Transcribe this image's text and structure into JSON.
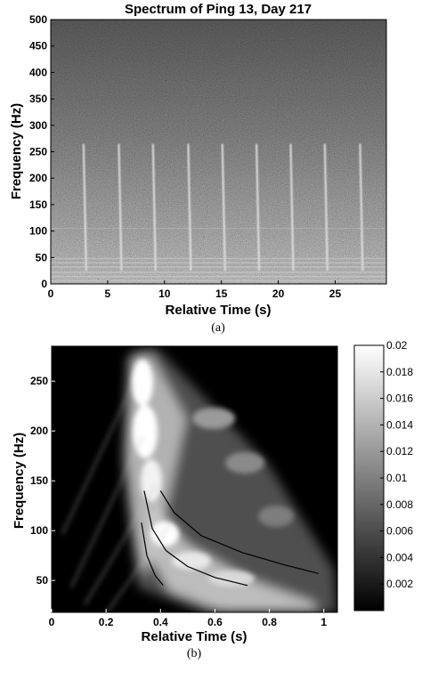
{
  "chart_data": [
    {
      "type": "heatmap",
      "title": "Spectrum of Ping 13, Day 217",
      "xlabel": "Relative Time (s)",
      "ylabel": "Frequency (Hz)",
      "xlim": [
        0,
        29.5
      ],
      "ylim": [
        0,
        500
      ],
      "xticks": [
        0,
        5,
        10,
        15,
        20,
        25
      ],
      "yticks": [
        0,
        50,
        100,
        150,
        200,
        250,
        300,
        350,
        400,
        450,
        500
      ],
      "colormap": "gray",
      "pulse_times": [
        3.0,
        6.1,
        9.1,
        12.2,
        15.2,
        18.2,
        21.2,
        24.2,
        27.3
      ],
      "pulse_freq_range": [
        25,
        265
      ],
      "caption": "(a)"
    },
    {
      "type": "heatmap",
      "xlabel": "Relative Time (s)",
      "ylabel": "Frequency (Hz)",
      "xlim": [
        0,
        1.05
      ],
      "ylim": [
        18,
        285
      ],
      "xticks": [
        0,
        0.2,
        0.4,
        0.6,
        0.8,
        1
      ],
      "xtick_labels": [
        "0",
        "0.2",
        "0.4",
        "0.6",
        "0.8",
        "1"
      ],
      "yticks": [
        50,
        100,
        150,
        200,
        250
      ],
      "colormap": "gray",
      "colorbar": {
        "min": 0,
        "max": 0.02,
        "ticks": [
          0.002,
          0.004,
          0.006,
          0.008,
          0.01,
          0.012,
          0.014,
          0.016,
          0.018,
          0.02
        ],
        "tick_labels": [
          "0.002",
          "0.004",
          "0.006",
          "0.008",
          "0.01",
          "0.012",
          "0.014",
          "0.016",
          "0.018",
          "0.02"
        ]
      },
      "overlay_curves": [
        {
          "x": [
            0.33,
            0.35,
            0.38,
            0.41
          ],
          "y": [
            108,
            75,
            55,
            45
          ]
        },
        {
          "x": [
            0.34,
            0.37,
            0.42,
            0.5,
            0.6,
            0.72
          ],
          "y": [
            140,
            102,
            80,
            64,
            53,
            45
          ]
        },
        {
          "x": [
            0.4,
            0.45,
            0.55,
            0.7,
            0.85,
            0.98
          ],
          "y": [
            140,
            118,
            95,
            78,
            66,
            57
          ]
        }
      ],
      "caption": "(b)"
    }
  ]
}
